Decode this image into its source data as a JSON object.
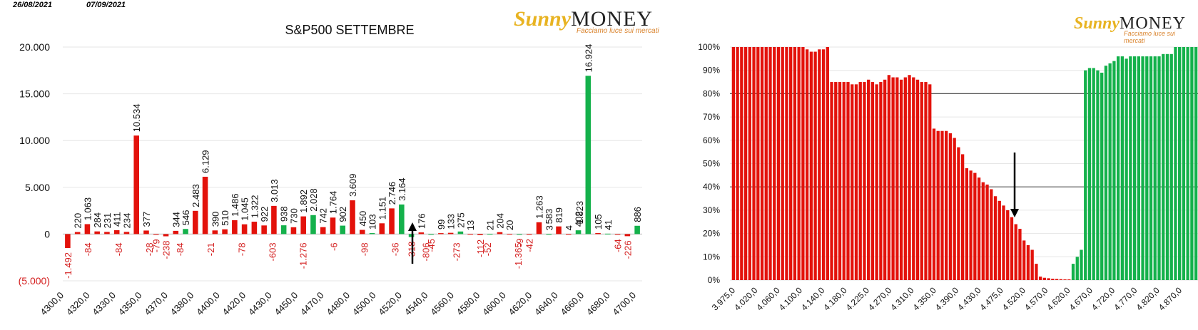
{
  "header": {
    "date_left": "26/08/2021",
    "date_right": "07/09/2021"
  },
  "logo": {
    "brand_sunny": "Sunny",
    "brand_money": "MONEY",
    "tagline": "Facciamo luce sui mercati"
  },
  "colors": {
    "call": "#e3120b",
    "put": "#14b14b",
    "negative_label": "#d42020",
    "arrow": "#000000",
    "gridline": "#e6e6e6",
    "hline": "#555555"
  },
  "chart_data": [
    {
      "type": "bar",
      "title": "S&P500 SETTEMBRE",
      "ylim": [
        -5000,
        20000
      ],
      "yticks": [
        20000,
        15000,
        10000,
        5000,
        0,
        -5000
      ],
      "ytick_labels": [
        "20.000",
        "15.000",
        "10.000",
        "5.000",
        "0",
        "(5.000)"
      ],
      "grid": true,
      "xtick_labels": [
        "4300,0",
        "4320,0",
        "4330,0",
        "4350,0",
        "4370,0",
        "4380,0",
        "4400,0",
        "4420,0",
        "4430,0",
        "4450,0",
        "4470,0",
        "4480,0",
        "4500,0",
        "4520,0",
        "4540,0",
        "4560,0",
        "4580,0",
        "4600,0",
        "4620,0",
        "4640,0",
        "4660,0",
        "4680,0",
        "4700,0"
      ],
      "series": [
        {
          "values": [
            -1492,
            220,
            1063,
            284,
            231,
            411,
            234,
            10534,
            377,
            -79,
            -238,
            344,
            546,
            2483,
            6129,
            390,
            510,
            1486,
            1045,
            1322,
            922,
            3013,
            938,
            730,
            1892,
            2028,
            742,
            1764,
            902,
            3609,
            450,
            103,
            1151,
            2746,
            3164,
            -318,
            176,
            -45,
            99,
            133,
            275,
            13,
            -112,
            21,
            204,
            20,
            -9,
            -42,
            1263,
            3,
            819,
            4,
            402,
            16924,
            105,
            41,
            -64,
            -226,
            886
          ]
        }
      ],
      "labels": [
        "-1.492",
        "220",
        "1.063",
        "284",
        "231",
        "411",
        "234",
        "10.534",
        "377",
        "-79",
        "-238",
        "344",
        "546",
        "2.483",
        "6.129",
        "390",
        "510",
        "1.486",
        "1.045",
        "1.322",
        "922",
        "3.013",
        "938",
        "730",
        "1.892",
        "2.028",
        "742",
        "1.764",
        "902",
        "3.609",
        "450",
        "103",
        "1.151",
        "2.746",
        "3.164",
        "-318",
        "176",
        "-45",
        "99",
        "133",
        "275",
        "13",
        "-112",
        "21",
        "204",
        "20",
        "-9",
        "-42",
        "1.263",
        "3",
        "819",
        "4",
        "402",
        "16.924",
        "105",
        "41",
        "-64",
        "-226",
        "886"
      ],
      "red_only_labels": [
        "-84",
        "-84",
        "-28",
        "-84",
        "-21",
        "-78",
        "-603",
        "-1.276",
        "-6",
        "-98",
        "-36",
        "-806",
        "-273",
        "-52",
        "-1.365",
        "583",
        "1.823"
      ]
    },
    {
      "type": "bar",
      "title": "",
      "ylim": [
        0,
        1
      ],
      "ytick_labels": [
        "100%",
        "90%",
        "80%",
        "70%",
        "60%",
        "50%",
        "40%",
        "30%",
        "20%",
        "10%",
        "0%"
      ],
      "hlines": [
        0.8,
        0.4
      ],
      "xtick_labels": [
        "3.975,0",
        "4.020,0",
        "4.060,0",
        "4.100,0",
        "4.140,0",
        "4.180,0",
        "4.225,0",
        "4.270,0",
        "4.310,0",
        "4.350,0",
        "4.390,0",
        "4.430,0",
        "4.475,0",
        "4.520,0",
        "4.570,0",
        "4.620,0",
        "4.670,0",
        "4.720,0",
        "4.770,0",
        "4.820,0",
        "4.870,0"
      ],
      "red_series": [
        1,
        1,
        1,
        1,
        1,
        1,
        1,
        1,
        1,
        1,
        1,
        1,
        1,
        1,
        1,
        1,
        1,
        1,
        0.99,
        0.98,
        0.98,
        0.99,
        0.99,
        1,
        0.85,
        0.85,
        0.85,
        0.85,
        0.85,
        0.84,
        0.84,
        0.85,
        0.85,
        0.86,
        0.85,
        0.84,
        0.85,
        0.86,
        0.88,
        0.87,
        0.87,
        0.86,
        0.87,
        0.88,
        0.87,
        0.86,
        0.85,
        0.85,
        0.84,
        0.65,
        0.64,
        0.64,
        0.64,
        0.63,
        0.61,
        0.57,
        0.54,
        0.48,
        0.47,
        0.46,
        0.44,
        0.42,
        0.41,
        0.39,
        0.36,
        0.34,
        0.32,
        0.3,
        0.27,
        0.24,
        0.22,
        0.17,
        0.15,
        0.13,
        0.07,
        0.015,
        0.01,
        0.008,
        0.006,
        0.005,
        0.004,
        0.003,
        0.003,
        0.003,
        0.002,
        0.002,
        0.002,
        0.002,
        0,
        0,
        0,
        0,
        0,
        0,
        0,
        0,
        0,
        0,
        0,
        0,
        0,
        0,
        0,
        0,
        0,
        0,
        0,
        0,
        0,
        0,
        0,
        0,
        0,
        0
      ],
      "green_series": [
        0,
        0,
        0,
        0,
        0,
        0,
        0,
        0,
        0,
        0,
        0,
        0,
        0,
        0,
        0,
        0,
        0,
        0,
        0,
        0,
        0,
        0,
        0,
        0,
        0,
        0,
        0,
        0,
        0,
        0,
        0,
        0,
        0,
        0,
        0,
        0,
        0,
        0,
        0,
        0,
        0,
        0,
        0,
        0,
        0,
        0,
        0,
        0,
        0,
        0,
        0,
        0,
        0,
        0,
        0,
        0,
        0,
        0,
        0,
        0,
        0,
        0,
        0,
        0,
        0,
        0,
        0,
        0,
        0,
        0,
        0,
        0,
        0,
        0,
        0,
        0,
        0,
        0,
        0,
        0,
        0,
        0,
        0,
        0.07,
        0.1,
        0.13,
        0.9,
        0.91,
        0.91,
        0.9,
        0.89,
        0.92,
        0.93,
        0.94,
        0.96,
        0.96,
        0.95,
        0.96,
        0.96,
        0.96,
        0.96,
        0.96,
        0.96,
        0.96,
        0.96,
        0.97,
        0.97,
        0.97,
        1,
        1,
        1,
        1,
        1,
        1,
        1,
        1,
        1
      ]
    }
  ]
}
